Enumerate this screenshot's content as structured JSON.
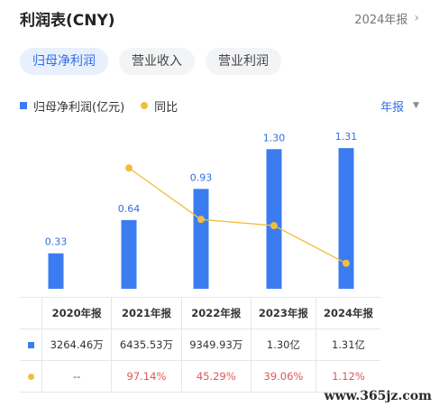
{
  "header": {
    "title": "利润表(CNY)",
    "period": "2024年报",
    "chevron_icon": "chevron-right-icon"
  },
  "tabs": [
    {
      "label": "归母净利润",
      "active": true
    },
    {
      "label": "营业收入",
      "active": false
    },
    {
      "label": "营业利润",
      "active": false
    }
  ],
  "legend": {
    "bar_label": "归母净利润(亿元)",
    "line_label": "同比",
    "period_select": "年报",
    "caret_icon": "caret-down-icon"
  },
  "colors": {
    "bar": "#3b7cf0",
    "line": "#f2bd3c",
    "accent": "#2f6fe6",
    "negative": "#e05757"
  },
  "chart_data": {
    "type": "bar",
    "categories": [
      "2020年报",
      "2021年报",
      "2022年报",
      "2023年报",
      "2024年报"
    ],
    "series": [
      {
        "name": "归母净利润(亿元)",
        "type": "bar",
        "values": [
          0.33,
          0.64,
          0.93,
          1.3,
          1.31
        ],
        "labels": [
          "0.33",
          "0.64",
          "0.93",
          "1.30",
          "1.31"
        ]
      },
      {
        "name": "同比",
        "type": "line",
        "values": [
          null,
          97.14,
          45.29,
          39.06,
          1.12
        ]
      }
    ]
  },
  "table": {
    "headers": [
      "2020年报",
      "2021年报",
      "2022年报",
      "2023年报",
      "2024年报"
    ],
    "profit_row": [
      "3264.46万",
      "6435.53万",
      "9349.93万",
      "1.30亿",
      "1.31亿"
    ],
    "yoy_row": [
      "--",
      "97.14%",
      "45.29%",
      "39.06%",
      "1.12%"
    ]
  },
  "watermark": "www.365jz.com"
}
